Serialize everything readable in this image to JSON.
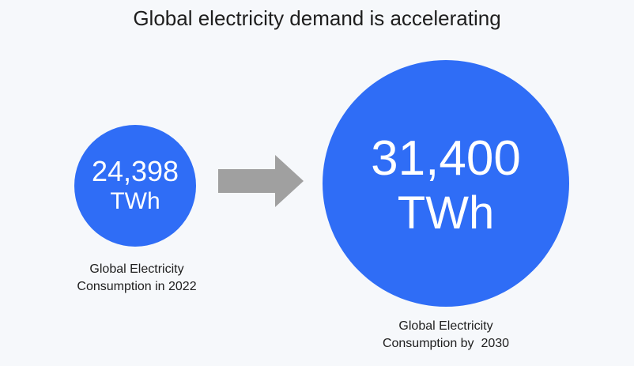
{
  "title": "Global electricity demand is accelerating",
  "colors": {
    "circle": "#2f6df6",
    "arrow": "#a0a0a0",
    "background": "#f6f8fb",
    "text": "#1e1e1e"
  },
  "left": {
    "value": "24,398",
    "unit": "TWh",
    "caption_line1": "Global Electricity",
    "caption_line2": "Consumption in 2022"
  },
  "arrow_icon": "right-arrow-icon",
  "right": {
    "value": "31,400",
    "unit": "TWh",
    "caption_line1": "Global Electricity",
    "caption_line2": "Consumption by  2030"
  }
}
